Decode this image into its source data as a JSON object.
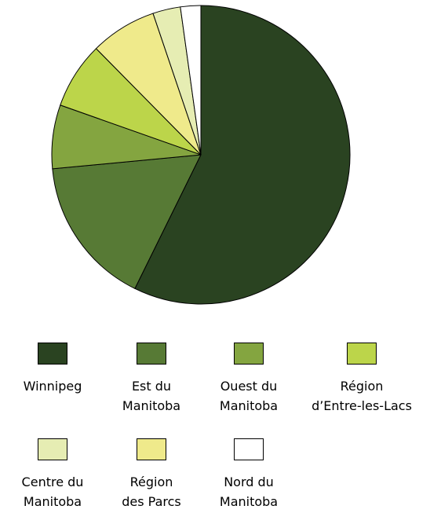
{
  "chart_data": {
    "type": "pie",
    "categories": [
      "Winnipeg",
      "Est du\nManitoba",
      "Ouest du\nManitoba",
      "Région\nd’Entre-les-Lacs",
      "Centre du\nManitoba",
      "Région\ndes Parcs",
      "Nord du\nManitoba"
    ],
    "values": [
      57.3,
      16.2,
      6.9,
      7.2,
      3.0,
      7.2,
      2.2
    ],
    "colors": [
      "#2a4321",
      "#577a35",
      "#84a540",
      "#bcd54a",
      "#e6edb3",
      "#efea8b",
      "#ffffff"
    ]
  }
}
